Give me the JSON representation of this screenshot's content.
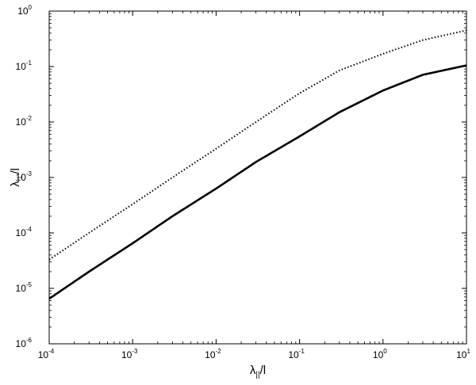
{
  "chart_data": {
    "type": "line",
    "x_scale": "log",
    "y_scale": "log",
    "xlim": [
      0.0001,
      10
    ],
    "ylim": [
      1e-06,
      1
    ],
    "xlabel": {
      "main": "λ",
      "sub": "||",
      "suffix": "/l"
    },
    "ylabel": {
      "main": "λ",
      "sub": "⊥",
      "suffix": "/l"
    },
    "x_ticks": [
      {
        "value": 0.0001,
        "base": "10",
        "exp": "-4"
      },
      {
        "value": 0.001,
        "base": "10",
        "exp": "-3"
      },
      {
        "value": 0.01,
        "base": "10",
        "exp": "-2"
      },
      {
        "value": 0.1,
        "base": "10",
        "exp": "-1"
      },
      {
        "value": 1,
        "base": "10",
        "exp": "0"
      },
      {
        "value": 10,
        "base": "10",
        "exp": "1"
      }
    ],
    "y_ticks": [
      {
        "value": 1e-06,
        "base": "10",
        "exp": "-6"
      },
      {
        "value": 1e-05,
        "base": "10",
        "exp": "-5"
      },
      {
        "value": 0.0001,
        "base": "10",
        "exp": "-4"
      },
      {
        "value": 0.001,
        "base": "10",
        "exp": "-3"
      },
      {
        "value": 0.01,
        "base": "10",
        "exp": "-2"
      },
      {
        "value": 0.1,
        "base": "10",
        "exp": "-1"
      },
      {
        "value": 1,
        "base": "10",
        "exp": "0"
      }
    ],
    "grid": false,
    "series": [
      {
        "style": "dotted",
        "color": "#000000",
        "x": [
          0.0001,
          0.0003,
          0.001,
          0.003,
          0.01,
          0.03,
          0.1,
          0.3,
          1,
          3,
          10
        ],
        "y": [
          3.3e-05,
          0.0001,
          0.00033,
          0.001,
          0.0033,
          0.01,
          0.033,
          0.085,
          0.17,
          0.3,
          0.45
        ]
      },
      {
        "style": "solid",
        "color": "#000000",
        "x": [
          0.0001,
          0.0003,
          0.001,
          0.003,
          0.01,
          0.03,
          0.1,
          0.3,
          1,
          3,
          10
        ],
        "y": [
          6.5e-06,
          2e-05,
          6.5e-05,
          0.0002,
          0.00063,
          0.0019,
          0.0055,
          0.015,
          0.037,
          0.071,
          0.105
        ]
      }
    ]
  }
}
